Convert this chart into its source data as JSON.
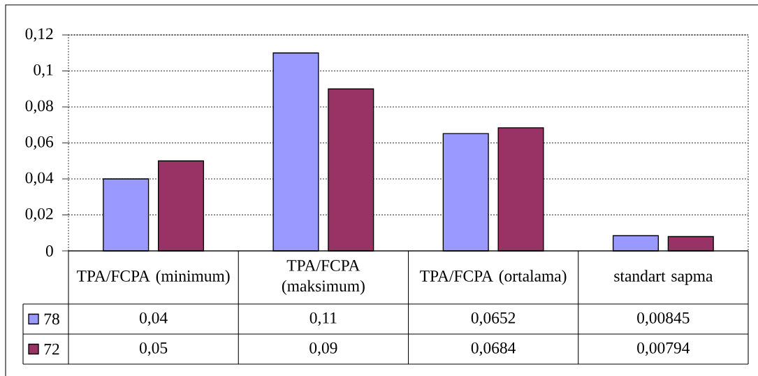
{
  "chart_data": {
    "type": "bar",
    "categories": [
      "TPA/FCPA (minimum)",
      "TPA/FCPA (maksimum)",
      "TPA/FCPA (ortalama)",
      "standart sapma"
    ],
    "series": [
      {
        "name": "78",
        "color": "#9999ff",
        "values": [
          0.04,
          0.11,
          0.0652,
          0.00845
        ],
        "value_labels": [
          "0,04",
          "0,11",
          "0,0652",
          "0,00845"
        ]
      },
      {
        "name": "72",
        "color": "#993366",
        "values": [
          0.05,
          0.09,
          0.0684,
          0.00794
        ],
        "value_labels": [
          "0,05",
          "0,09",
          "0,0684",
          "0,00794"
        ]
      }
    ],
    "ylim": [
      0,
      0.12
    ],
    "yticks": [
      0,
      {
        "value": 0.02,
        "label": "0,02"
      },
      {
        "value": 0.04,
        "label": "0,04"
      },
      {
        "value": 0.06,
        "label": "0,06"
      },
      {
        "value": 0.08,
        "label": "0,08"
      },
      {
        "value": 0.1,
        "label": "0,1"
      },
      {
        "value": 0.12,
        "label": "0,12"
      }
    ],
    "grid": "y",
    "legend": "bottom"
  }
}
